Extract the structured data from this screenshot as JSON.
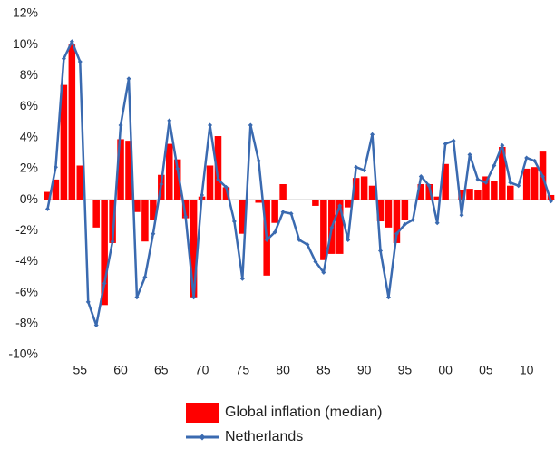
{
  "chart_data": {
    "type": "combo",
    "categories": [
      null,
      null,
      null,
      null,
      "55",
      null,
      null,
      null,
      null,
      "60",
      null,
      null,
      null,
      null,
      "65",
      null,
      null,
      null,
      null,
      "70",
      null,
      null,
      null,
      null,
      "75",
      null,
      null,
      null,
      null,
      "80",
      null,
      null,
      null,
      null,
      "85",
      null,
      null,
      null,
      null,
      "90",
      null,
      null,
      null,
      null,
      "95",
      null,
      null,
      null,
      null,
      "00",
      null,
      null,
      null,
      null,
      "05",
      null,
      null,
      null,
      null,
      "10",
      null,
      null,
      null
    ],
    "series": [
      {
        "name": "Global inflation (median)",
        "type": "bar",
        "color": "#ff0000",
        "values": [
          0.5,
          1.3,
          7.4,
          10.0,
          2.2,
          0,
          -1.8,
          -6.8,
          -2.8,
          3.9,
          3.8,
          -0.8,
          -2.7,
          -1.3,
          1.6,
          3.6,
          2.6,
          -1.2,
          -6.3,
          0.2,
          2.2,
          4.1,
          0.8,
          0,
          -2.2,
          0,
          -0.2,
          -4.9,
          -1.5,
          1.0,
          0,
          0,
          0,
          -0.4,
          -3.9,
          -3.5,
          -3.5,
          -0.5,
          1.4,
          1.5,
          0.9,
          -1.4,
          -1.8,
          -2.8,
          -1.3,
          0,
          1.0,
          1.0,
          0.2,
          2.3,
          0,
          0.6,
          0.7,
          0.6,
          1.5,
          1.2,
          3.4,
          0.9,
          0,
          2.0,
          2.1,
          3.1,
          0.3
        ]
      },
      {
        "name": "Netherlands",
        "type": "line",
        "color": "#3a6ab0",
        "values": [
          -0.6,
          2.1,
          9.1,
          10.2,
          8.9,
          -6.6,
          -8.1,
          -5.4,
          -2.7,
          4.8,
          7.8,
          -6.3,
          -5.0,
          -2.2,
          1.0,
          5.1,
          2.0,
          -1.1,
          -6.3,
          0.3,
          4.8,
          1.3,
          0.8,
          -1.4,
          -5.1,
          4.8,
          2.5,
          -2.6,
          -2.1,
          -0.8,
          -0.9,
          -2.6,
          -2.9,
          -4.0,
          -4.7,
          -1.8,
          -0.4,
          -2.6,
          2.1,
          1.9,
          4.2,
          -3.3,
          -6.3,
          -2.2,
          -1.6,
          -1.3,
          1.5,
          0.9,
          -1.5,
          3.6,
          3.8,
          -1.0,
          2.9,
          1.3,
          1.1,
          2.2,
          3.5,
          1.1,
          0.9,
          2.7,
          2.5,
          1.5,
          -0.1
        ]
      }
    ],
    "ylim": [
      -10,
      12
    ],
    "yticks": [
      {
        "value": -10,
        "label": "-10%"
      },
      {
        "value": -8,
        "label": "-8%"
      },
      {
        "value": -6,
        "label": "-6%"
      },
      {
        "value": -4,
        "label": "-4%"
      },
      {
        "value": -2,
        "label": "-2%"
      },
      {
        "value": 0,
        "label": "0%"
      },
      {
        "value": 2,
        "label": "2%"
      },
      {
        "value": 4,
        "label": "4%"
      },
      {
        "value": 6,
        "label": "6%"
      },
      {
        "value": 8,
        "label": "8%"
      },
      {
        "value": 10,
        "label": "10%"
      },
      {
        "value": 12,
        "label": "12%"
      }
    ],
    "grid": false,
    "legend": "bottom"
  }
}
